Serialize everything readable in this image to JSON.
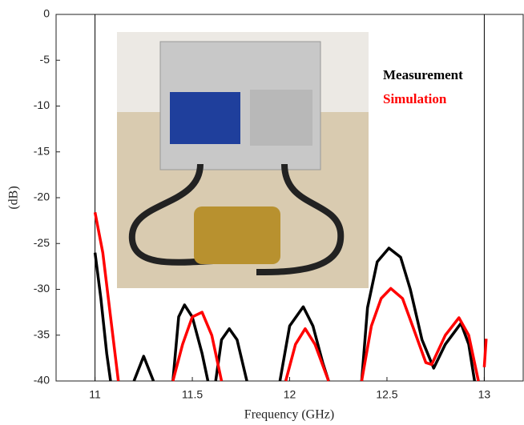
{
  "chart_data": {
    "type": "line",
    "xlabel": "Frequency (GHz)",
    "ylabel": "(dB)",
    "xlim": [
      10.8,
      13.2
    ],
    "xticks": [
      11,
      11.5,
      12,
      12.5,
      13
    ],
    "ylim": [
      -40,
      0
    ],
    "yticks": [
      0,
      -5,
      -10,
      -15,
      -20,
      -25,
      -30,
      -35,
      -40
    ],
    "markers": [
      11,
      13
    ],
    "series": [
      {
        "name": "Measurement",
        "color": "#000000",
        "x": [
          11.0,
          11.03,
          11.06,
          11.08,
          null,
          11.2,
          11.25,
          11.3,
          null,
          11.4,
          11.43,
          11.46,
          11.5,
          11.55,
          11.58,
          null,
          11.62,
          11.65,
          11.69,
          11.73,
          11.78,
          null,
          11.95,
          12.0,
          12.07,
          12.12,
          12.17,
          12.2,
          null,
          12.37,
          12.4,
          12.45,
          12.51,
          12.57,
          12.62,
          12.68,
          12.74,
          12.8,
          12.88,
          12.92,
          12.95
        ],
        "values": [
          -26,
          -31,
          -37,
          -40,
          null,
          -40,
          -37.3,
          -40,
          null,
          -40,
          -33,
          -31.7,
          -33,
          -37,
          -40,
          null,
          -40,
          -35.5,
          -34.3,
          -35.5,
          -40,
          null,
          -40,
          -34,
          -31.9,
          -34,
          -38,
          -40,
          null,
          -40,
          -32,
          -27,
          -25.5,
          -26.5,
          -30,
          -35.5,
          -38.6,
          -36,
          -33.7,
          -36,
          -40
        ]
      },
      {
        "name": "Simulation",
        "color": "#ff0000",
        "x": [
          11.0,
          11.04,
          11.08,
          11.12,
          null,
          11.4,
          11.45,
          11.5,
          11.55,
          11.6,
          11.65,
          null,
          11.98,
          12.03,
          12.08,
          12.13,
          12.2,
          null,
          12.37,
          12.42,
          12.47,
          12.52,
          12.58,
          12.64,
          12.7,
          12.73,
          12.8,
          12.87,
          12.92,
          12.97,
          null,
          13.0,
          13.01
        ],
        "values": [
          -21.6,
          -26,
          -33,
          -40,
          null,
          -40,
          -36,
          -33,
          -32.5,
          -35,
          -40,
          null,
          -40,
          -36,
          -34.3,
          -36,
          -40,
          null,
          -40,
          -34,
          -31,
          -29.9,
          -31,
          -34.5,
          -38,
          -38.2,
          -35,
          -33.1,
          -35,
          -40,
          null,
          -38.5,
          -35.4
        ]
      }
    ]
  }
}
